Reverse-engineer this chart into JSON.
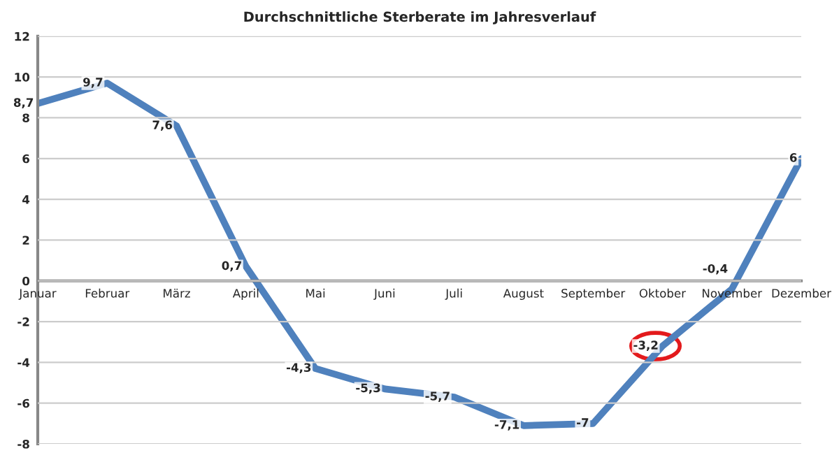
{
  "chart_data": {
    "type": "line",
    "title": "Durchschnittliche Sterberate im Jahresverlauf",
    "categories": [
      "Januar",
      "Februar",
      "März",
      "April",
      "Mai",
      "Juni",
      "Juli",
      "August",
      "September",
      "Oktober",
      "November",
      "Dezember"
    ],
    "series": [
      {
        "color": "#4f81bd",
        "values": [
          8.7,
          9.7,
          7.6,
          0.7,
          -4.3,
          -5.3,
          -5.7,
          -7.1,
          -7,
          -3.2,
          -0.4,
          6
        ],
        "value_labels": [
          "8,7",
          "9,7",
          "7,6",
          "0,7",
          "-4,3",
          "-5,3",
          "-5,7",
          "-7,1",
          "-7",
          "-3,2",
          "-0,4",
          "6"
        ]
      }
    ],
    "ylim": [
      -8,
      12
    ],
    "yticks": [
      -8,
      -6,
      -4,
      -2,
      0,
      2,
      4,
      6,
      8,
      10,
      12
    ],
    "grid": "y",
    "marker": "none",
    "line_style": "solid",
    "legend": false
  }
}
